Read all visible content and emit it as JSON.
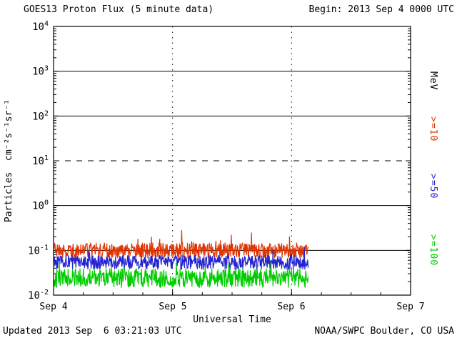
{
  "header": {
    "title": "GOES13 Proton Flux (5 minute data)",
    "begin_label": "Begin: 2013 Sep 4 0000 UTC"
  },
  "footer": {
    "updated": "Updated 2013 Sep  6 03:21:03 UTC",
    "source": "NOAA/SWPC Boulder, CO USA"
  },
  "axes": {
    "xlabel": "Universal Time",
    "ylabel": "Particles  cm⁻²s⁻¹sr⁻¹",
    "x_ticks": [
      "Sep 4",
      "Sep 5",
      "Sep 6",
      "Sep 7"
    ],
    "y_exponents": [
      4,
      3,
      2,
      1,
      0,
      -1,
      -2
    ]
  },
  "right_labels": [
    {
      "label": "MeV",
      "color": "#000000"
    },
    {
      "label": ">=10",
      "color": "#df3300"
    },
    {
      "label": ">=50",
      "color": "#2424cf"
    },
    {
      "label": ">=100",
      "color": "#00cc00"
    }
  ],
  "colors": {
    "background": "#ffffff",
    "axis": "#000000",
    "red": "#df3300",
    "blue": "#2424cf",
    "green": "#00cc00"
  },
  "chart_data": {
    "type": "line",
    "title": "GOES13 Proton Flux (5 minute data)",
    "xlabel": "Universal Time",
    "ylabel": "Particles cm^-2 s^-1 sr^-1",
    "x_range": [
      "2013 Sep 4 0000 UTC",
      "2013 Sep 7 0000 UTC"
    ],
    "x_tick_labels": [
      "Sep 4",
      "Sep 5",
      "Sep 6",
      "Sep 7"
    ],
    "ylog_range_exponents": [
      -2,
      4
    ],
    "y_scale": "log10",
    "cadence_minutes": 5,
    "x_span_days": 3,
    "data_end_day": 2.14,
    "gridlines": {
      "solid_at_exponents": [
        3,
        2,
        0,
        -1
      ],
      "dashed_at_exponents": [
        1
      ],
      "vertical_dotted_at_days": [
        1,
        2
      ]
    },
    "legend_position": "right-margin-rotated",
    "series": [
      {
        "name": ">=10 MeV",
        "color": "#df3300",
        "baseline_flux": 0.1,
        "typical_range": [
          0.06,
          0.3
        ],
        "noise_log10": 0.17,
        "seed": 11
      },
      {
        "name": ">=50 MeV",
        "color": "#2424cf",
        "baseline_flux": 0.054,
        "typical_range": [
          0.03,
          0.12
        ],
        "noise_log10": 0.16,
        "seed": 22
      },
      {
        "name": ">=100 MeV",
        "color": "#00cc00",
        "baseline_flux": 0.024,
        "typical_range": [
          0.013,
          0.05
        ],
        "noise_log10": 0.21,
        "seed": 33
      }
    ]
  }
}
